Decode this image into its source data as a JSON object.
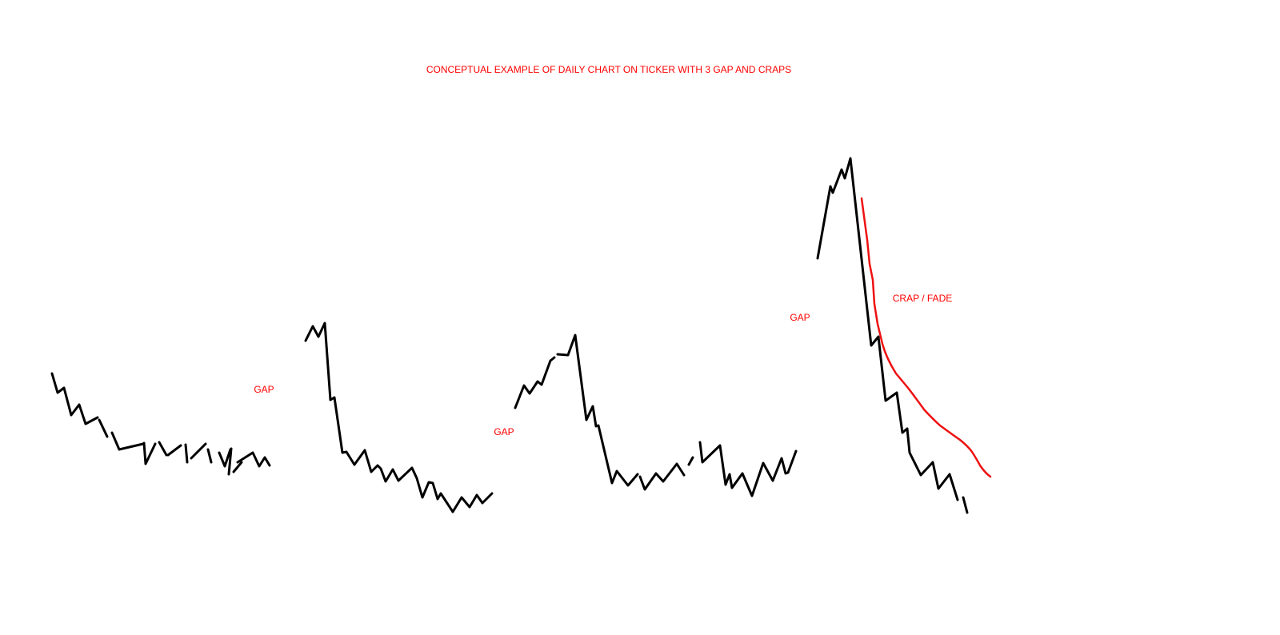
{
  "title": "CONCEPTUAL EXAMPLE OF DAILY CHART ON TICKER WITH 3 GAP AND CRAPS",
  "labels": [
    "GAP",
    "GAP",
    "GAP",
    "CRAP / FADE"
  ]
}
